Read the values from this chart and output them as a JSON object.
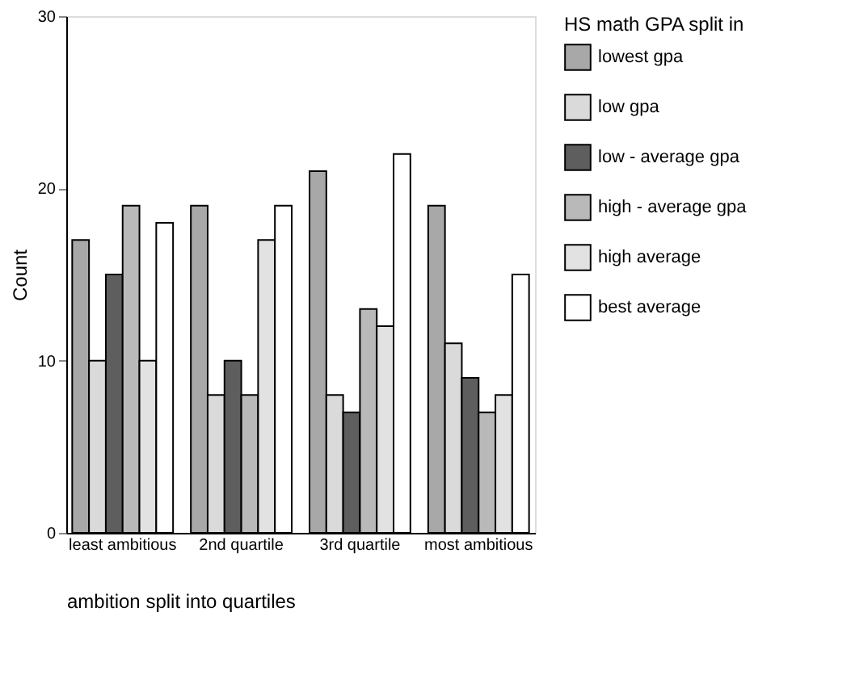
{
  "chart_data": {
    "type": "bar",
    "xlabel": "ambition split into quartiles",
    "ylabel": "Count",
    "legend_title": "HS math GPA split in",
    "categories": [
      "least ambitious",
      "2nd quartile",
      "3rd quartile",
      "most ambitious"
    ],
    "series": [
      {
        "name": "lowest gpa",
        "color": "#a8a8a8",
        "values": [
          17,
          19,
          21,
          19
        ]
      },
      {
        "name": "low gpa",
        "color": "#dadada",
        "values": [
          10,
          8,
          8,
          11
        ]
      },
      {
        "name": "low - average gpa",
        "color": "#5e5e5e",
        "values": [
          15,
          10,
          7,
          9
        ]
      },
      {
        "name": "high - average gpa",
        "color": "#b9b9b9",
        "values": [
          19,
          8,
          13,
          7
        ]
      },
      {
        "name": "high average",
        "color": "#e2e2e2",
        "values": [
          10,
          17,
          12,
          8
        ]
      },
      {
        "name": "best average",
        "color": "#ffffff",
        "values": [
          18,
          19,
          22,
          15
        ]
      }
    ],
    "ylim": [
      0,
      30
    ],
    "yticks": [
      0,
      10,
      20,
      30
    ],
    "grid": false,
    "legend": "right"
  }
}
